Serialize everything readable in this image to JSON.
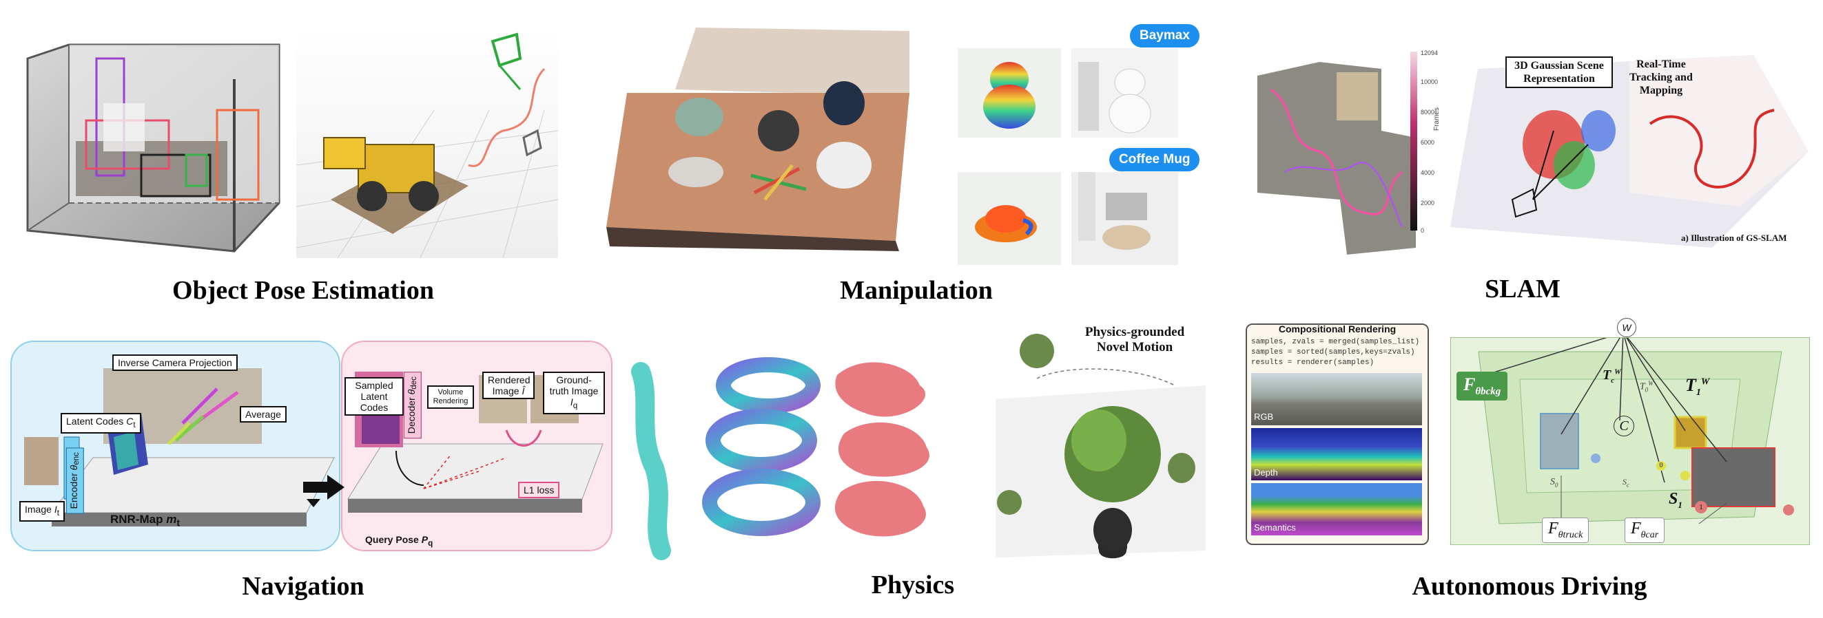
{
  "captions": {
    "object_pose": "Object Pose Estimation",
    "manipulation": "Manipulation",
    "slam": "SLAM",
    "navigation": "Navigation",
    "physics": "Physics",
    "autonomous_driving": "Autonomous Driving"
  },
  "manipulation": {
    "bubble_1": "Baymax",
    "bubble_2": "Coffee Mug"
  },
  "slam": {
    "colorbar_ticks": [
      "12094",
      "10000",
      "8000",
      "6000",
      "4000",
      "2000",
      "0"
    ],
    "colorbar_label": "Frames",
    "box_1": "3D Gaussian Scene Representation",
    "box_2": "Real-Time Tracking and Mapping",
    "footnote": "a) Illustration of GS-SLAM"
  },
  "navigation": {
    "inverse_projection": "Inverse Camera Projection",
    "latent_codes": "Latent Codes",
    "latent_codes_sym": "C",
    "latent_codes_sub": "t",
    "average": "Average",
    "encoder": "Encoder",
    "encoder_sym": "θ",
    "encoder_sub": "enc",
    "image_label": "Image",
    "image_sym": "I",
    "image_sub": "t",
    "rnr_map": "RNR-Map",
    "rnr_sym": "m",
    "rnr_sub": "t",
    "sampled_codes": "Sampled Latent Codes",
    "decoder": "Decoder",
    "decoder_sym": "θ",
    "decoder_sub": "dec",
    "volume_rendering": "Volume Rendering",
    "rendered_image": "Rendered Image",
    "rendered_sym": "Î",
    "ground_truth": "Ground-truth Image",
    "gt_sym": "I",
    "gt_sub": "q",
    "l1_loss": "L1 loss",
    "query_pose": "Query Pose",
    "query_sym": "P",
    "query_sub": "q"
  },
  "physics": {
    "title_line1": "Physics-grounded",
    "title_line2": "Novel Motion"
  },
  "compositional": {
    "title": "Compositional Rendering",
    "code_line_1": "samples, zvals = merged(samples_list)",
    "code_line_2": "samples = sorted(samples,keys=zvals)",
    "code_line_3": "results = renderer(samples)",
    "label_rgb": "RGB",
    "label_depth": "Depth",
    "label_semantics": "Semantics"
  },
  "driving": {
    "world": "W",
    "f_bckg": "F",
    "f_bckg_sub": "θbckg",
    "f_truck": "F",
    "f_truck_sub": "θtruck",
    "f_car": "F",
    "f_car_sub": "θcar",
    "camera": "C",
    "t_c": "T",
    "t_c_sub": "c",
    "t_c_sup": "W",
    "t_0": "T",
    "t_0_sub": "0",
    "t_0_sup": "W",
    "t_1": "T",
    "t_1_sub": "1",
    "t_1_sup": "W",
    "s_0": "S",
    "s_0_sub": "0",
    "s_1": "S",
    "s_1_sub": "1",
    "s_c": "S",
    "s_c_sub": "c",
    "node_0": "0",
    "node_1": "1"
  }
}
